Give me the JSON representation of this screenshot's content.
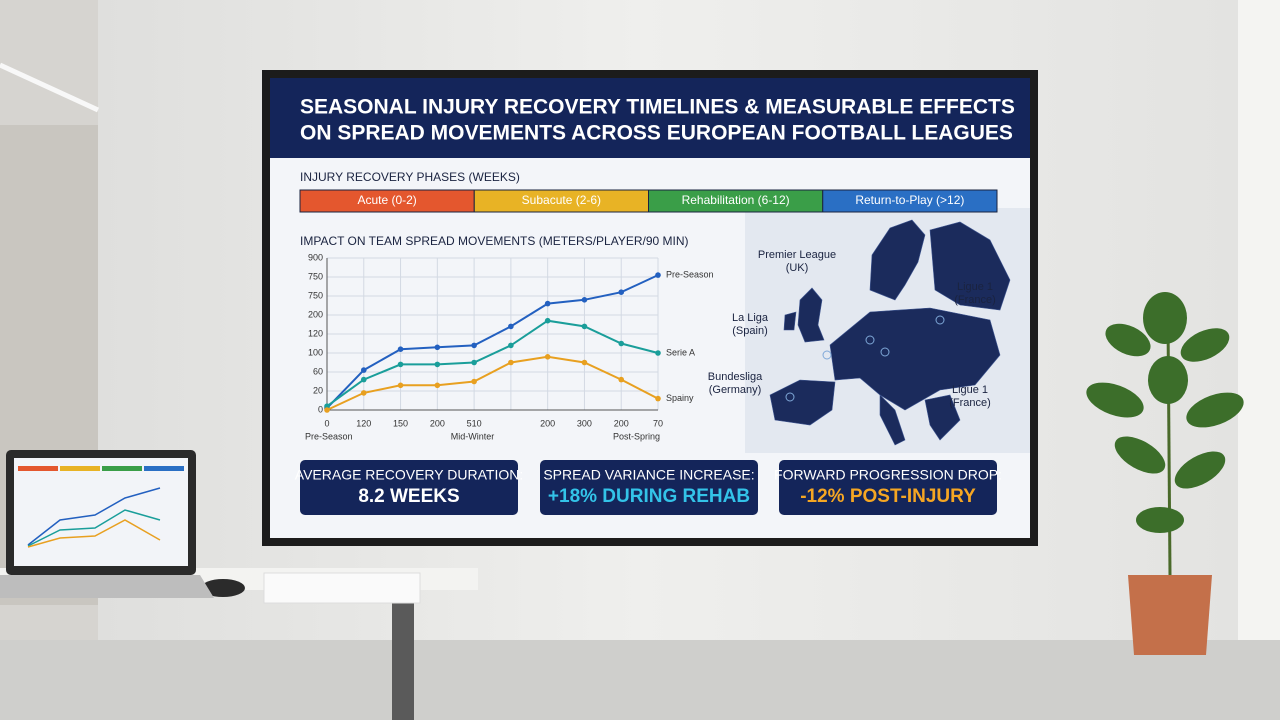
{
  "title_lines": [
    "SEASONAL INJURY RECOVERY TIMELINES & MEASURABLE EFFECTS",
    "ON SPREAD MOVEMENTS ACROSS EUROPEAN FOOTBALL LEAGUES"
  ],
  "phases": {
    "title": "INJURY RECOVERY PHASES (WEEKS)",
    "items": [
      {
        "label": "Acute (0-2)",
        "color": "#e4572e"
      },
      {
        "label": "Subacute (2-6)",
        "color": "#e8b325"
      },
      {
        "label": "Rehabilitation (6-12)",
        "color": "#3a9e48"
      },
      {
        "label": "Return-to-Play (>12)",
        "color": "#2a6fc4"
      }
    ]
  },
  "chart_data": {
    "type": "line",
    "title": "IMPACT ON TEAM SPREAD MOVEMENTS (METERS/PLAYER/90 MIN)",
    "categories": [
      "0",
      "120",
      "150",
      "200",
      "510",
      null,
      "200",
      "300",
      "200",
      "70"
    ],
    "y_labels": [
      "0",
      "20",
      "60",
      "100",
      "120",
      "200",
      "750",
      "750",
      "900"
    ],
    "ylim": [
      0,
      8
    ],
    "grid": true,
    "season_labels": [
      "Pre-Season",
      "Mid-Winter",
      "Post-Spring"
    ],
    "series": [
      {
        "name": "Pre-Season",
        "color": "#2360c0",
        "values": [
          0.1,
          2.1,
          3.2,
          3.3,
          3.4,
          4.4,
          5.6,
          5.8,
          6.2,
          7.1
        ]
      },
      {
        "name": "Serie A",
        "color": "#1a9e9a",
        "values": [
          0.2,
          1.6,
          2.4,
          2.4,
          2.5,
          3.4,
          4.7,
          4.4,
          3.5,
          3.0
        ]
      },
      {
        "name": "Spainy",
        "color": "#e8a020",
        "values": [
          0.0,
          0.9,
          1.3,
          1.3,
          1.5,
          2.5,
          2.8,
          2.5,
          1.6,
          0.6
        ]
      }
    ]
  },
  "map": {
    "labels": [
      [
        "Premier League",
        "(UK)"
      ],
      [
        "Ligue 1",
        "(France)"
      ],
      [
        "La Liga",
        "(Spain)"
      ],
      [
        "Bundesliga",
        "(Germany)"
      ],
      [
        "Ligue 1",
        "(France)"
      ]
    ]
  },
  "cards": [
    {
      "label": "AVERAGE RECOVERY DURATION:",
      "value": "8.2 WEEKS",
      "color": "#ffffff"
    },
    {
      "label": "SPREAD VARIANCE INCREASE:",
      "value": "+18% DURING REHAB",
      "color": "#33c3e8"
    },
    {
      "label": "FORWARD PROGRESSION DROP:",
      "value": "-12% POST-INJURY",
      "color": "#f5a623"
    }
  ]
}
